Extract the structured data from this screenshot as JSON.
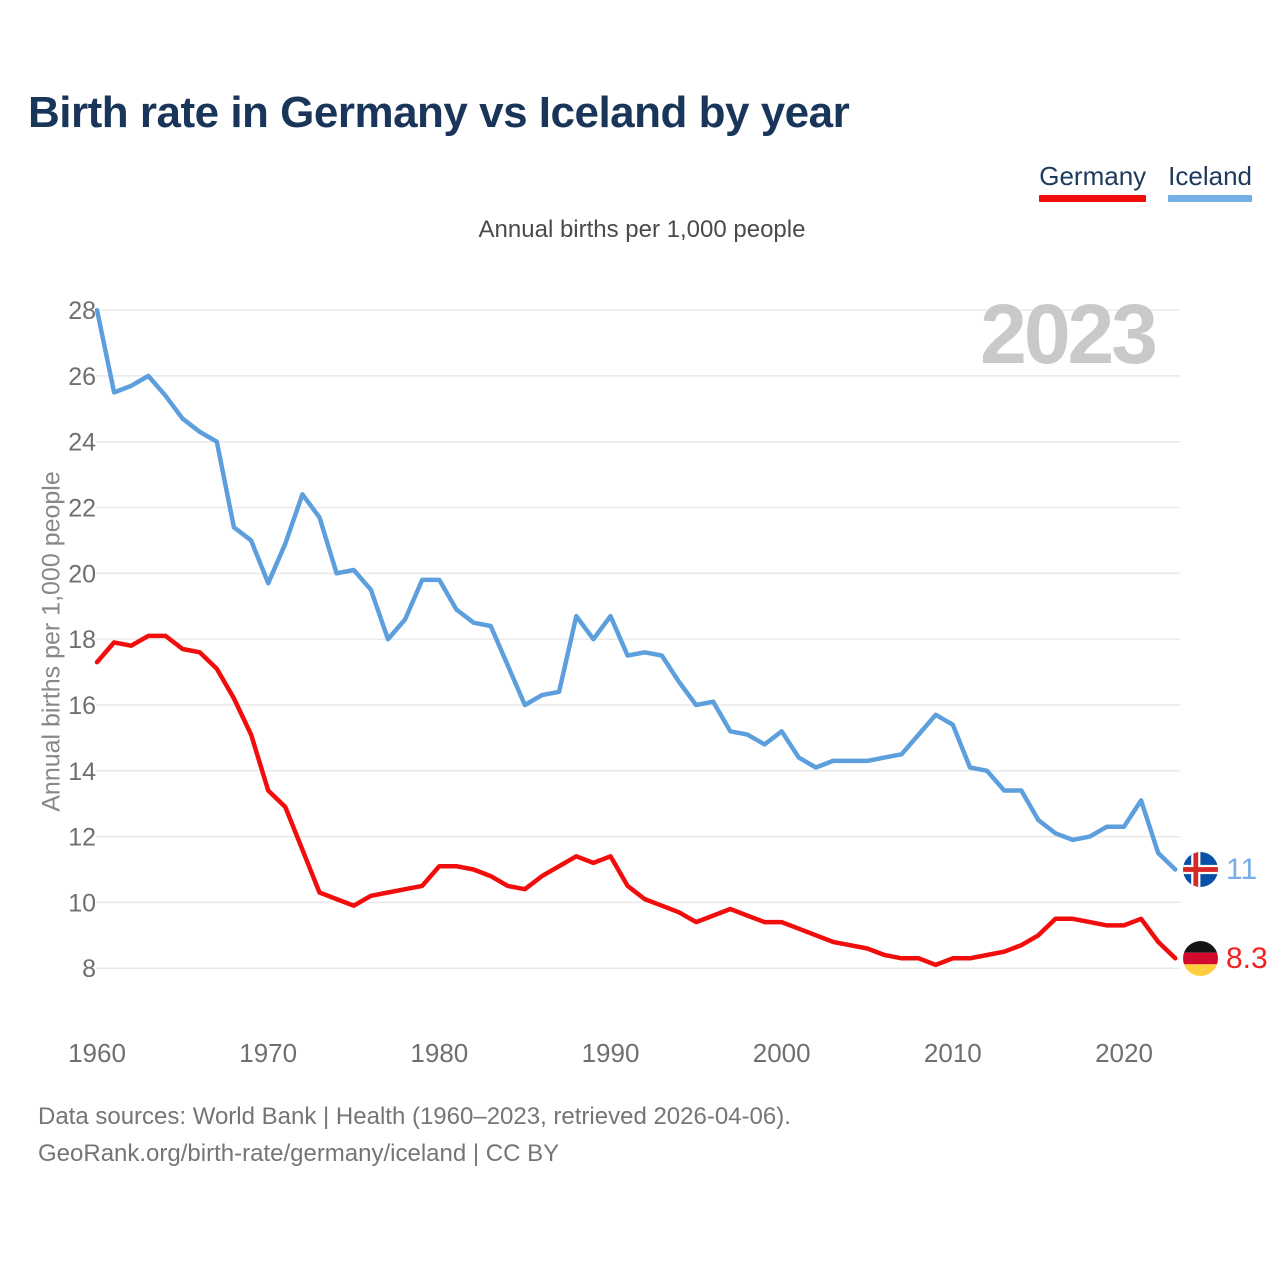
{
  "header": {
    "title": "Birth rate in Germany vs Iceland by year"
  },
  "legend": {
    "items": [
      {
        "label": "Germany",
        "color": "#f20d0d"
      },
      {
        "label": "Iceland",
        "color": "#76afe4"
      }
    ]
  },
  "subtitle": "Annual births per 1,000 people",
  "watermark": "2023",
  "chart_data": {
    "type": "line",
    "title": "Birth rate in Germany vs Iceland by year",
    "subtitle": "Annual births per 1,000 people",
    "xlabel": "",
    "ylabel": "Annual births per 1,000 people",
    "x_range": [
      1960,
      2023
    ],
    "ylim": [
      8,
      28
    ],
    "grid": "horizontal",
    "legend_position": "top-right",
    "xticks": [
      1960,
      1970,
      1980,
      1990,
      2000,
      2010,
      2020
    ],
    "yticks": [
      8,
      10,
      12,
      14,
      16,
      18,
      20,
      22,
      24,
      26,
      28
    ],
    "x": [
      1960,
      1961,
      1962,
      1963,
      1964,
      1965,
      1966,
      1967,
      1968,
      1969,
      1970,
      1971,
      1972,
      1973,
      1974,
      1975,
      1976,
      1977,
      1978,
      1979,
      1980,
      1981,
      1982,
      1983,
      1984,
      1985,
      1986,
      1987,
      1988,
      1989,
      1990,
      1991,
      1992,
      1993,
      1994,
      1995,
      1996,
      1997,
      1998,
      1999,
      2000,
      2001,
      2002,
      2003,
      2004,
      2005,
      2006,
      2007,
      2008,
      2009,
      2010,
      2011,
      2012,
      2013,
      2014,
      2015,
      2016,
      2017,
      2018,
      2019,
      2020,
      2021,
      2022,
      2023
    ],
    "series": [
      {
        "name": "Germany",
        "color": "#f20d0d",
        "values": [
          17.3,
          17.9,
          17.8,
          18.1,
          18.1,
          17.7,
          17.6,
          17.1,
          16.2,
          15.1,
          13.4,
          12.9,
          11.6,
          10.3,
          10.1,
          9.9,
          10.2,
          10.3,
          10.4,
          10.5,
          11.1,
          11.1,
          11.0,
          10.8,
          10.5,
          10.4,
          10.8,
          11.1,
          11.4,
          11.2,
          11.4,
          10.5,
          10.1,
          9.9,
          9.7,
          9.4,
          9.6,
          9.8,
          9.6,
          9.4,
          9.4,
          9.2,
          9.0,
          8.8,
          8.7,
          8.6,
          8.4,
          8.3,
          8.3,
          8.1,
          8.3,
          8.3,
          8.4,
          8.5,
          8.7,
          9.0,
          9.5,
          9.5,
          9.4,
          9.3,
          9.3,
          9.5,
          8.8,
          8.3
        ]
      },
      {
        "name": "Iceland",
        "color": "#5d9fdd",
        "values": [
          28.0,
          25.5,
          25.7,
          26.0,
          25.4,
          24.7,
          24.3,
          24.0,
          21.4,
          21.0,
          19.7,
          20.9,
          22.4,
          21.7,
          20.0,
          20.1,
          19.5,
          18.0,
          18.6,
          19.8,
          19.8,
          18.9,
          18.5,
          18.4,
          17.2,
          16.0,
          16.3,
          16.4,
          18.7,
          18.0,
          18.7,
          17.5,
          17.6,
          17.5,
          16.7,
          16.0,
          16.1,
          15.2,
          15.1,
          14.8,
          15.2,
          14.4,
          14.1,
          14.3,
          14.3,
          14.3,
          14.4,
          14.5,
          15.1,
          15.7,
          15.4,
          14.1,
          14.0,
          13.4,
          13.4,
          12.5,
          12.1,
          11.9,
          12.0,
          12.3,
          12.3,
          13.1,
          11.5,
          11.0
        ]
      }
    ],
    "end_labels": [
      {
        "series": "Iceland",
        "value": "11",
        "flag": "iceland-flag"
      },
      {
        "series": "Germany",
        "value": "8.3",
        "flag": "germany-flag"
      }
    ]
  },
  "footer": {
    "line1": "Data sources: World Bank | Health (1960–2023, retrieved 2026-04-06).",
    "line2": "GeoRank.org/birth-rate/germany/iceland | CC BY"
  }
}
